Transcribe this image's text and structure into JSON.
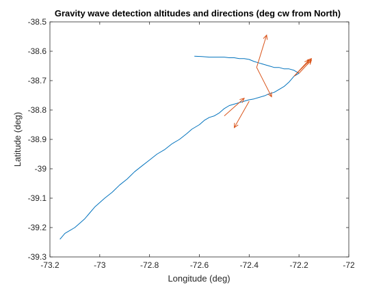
{
  "chart_data": {
    "type": "line",
    "title": "Gravity wave detection altitudes and directions (deg cw from North)",
    "xlabel": "Longitude (deg)",
    "ylabel": "Latitude (deg)",
    "xlim": [
      -73.2,
      -72.0
    ],
    "ylim": [
      -39.3,
      -38.5
    ],
    "x_ticks": [
      -73.2,
      -73.0,
      -72.8,
      -72.6,
      -72.4,
      -72.2,
      -72.0
    ],
    "x_tick_labels": [
      "-73.2",
      "-73",
      "-72.8",
      "-72.6",
      "-72.4",
      "-72.2",
      "-72"
    ],
    "y_ticks": [
      -39.3,
      -39.2,
      -39.1,
      -39.0,
      -38.9,
      -38.8,
      -38.7,
      -38.6,
      -38.5
    ],
    "y_tick_labels": [
      "-39.3",
      "-39.2",
      "-39.1",
      "-39",
      "-38.9",
      "-38.8",
      "-38.7",
      "-38.6",
      "-38.5"
    ],
    "grid": false,
    "series": [
      {
        "color": "#0072BD",
        "x": [
          -73.16,
          -73.15,
          -73.14,
          -73.12,
          -73.1,
          -73.08,
          -73.06,
          -73.04,
          -73.02,
          -73.0,
          -72.98,
          -72.95,
          -72.92,
          -72.89,
          -72.86,
          -72.83,
          -72.8,
          -72.77,
          -72.74,
          -72.71,
          -72.68,
          -72.65,
          -72.63,
          -72.6,
          -72.58,
          -72.56,
          -72.54,
          -72.52,
          -72.5,
          -72.48,
          -72.46,
          -72.44,
          -72.42,
          -72.4,
          -72.38,
          -72.36,
          -72.34,
          -72.32,
          -72.3,
          -72.28,
          -72.26,
          -72.24,
          -72.23,
          -72.22,
          -72.21,
          -72.2,
          -72.21,
          -72.22,
          -72.24,
          -72.26,
          -72.28,
          -72.3,
          -72.32,
          -72.34,
          -72.36,
          -72.38,
          -72.4,
          -72.42,
          -72.44,
          -72.46,
          -72.48,
          -72.5,
          -72.53,
          -72.56,
          -72.59,
          -72.62
        ],
        "y": [
          -39.24,
          -39.23,
          -39.22,
          -39.21,
          -39.2,
          -39.185,
          -39.17,
          -39.15,
          -39.13,
          -39.115,
          -39.1,
          -39.08,
          -39.055,
          -39.035,
          -39.01,
          -38.99,
          -38.97,
          -38.95,
          -38.935,
          -38.915,
          -38.9,
          -38.88,
          -38.865,
          -38.85,
          -38.835,
          -38.825,
          -38.82,
          -38.81,
          -38.795,
          -38.785,
          -38.78,
          -38.775,
          -38.77,
          -38.765,
          -38.762,
          -38.757,
          -38.752,
          -38.745,
          -38.74,
          -38.73,
          -38.72,
          -38.705,
          -38.695,
          -38.685,
          -38.68,
          -38.675,
          -38.67,
          -38.665,
          -38.66,
          -38.66,
          -38.655,
          -38.655,
          -38.65,
          -38.645,
          -38.64,
          -38.635,
          -38.628,
          -38.625,
          -38.625,
          -38.622,
          -38.622,
          -38.62,
          -38.62,
          -38.62,
          -38.618,
          -38.617
        ]
      }
    ],
    "arrows": {
      "color": "#D95319",
      "items": [
        {
          "x": -72.37,
          "y": -38.655,
          "u": 0.04,
          "v": 0.11
        },
        {
          "x": -72.37,
          "y": -38.655,
          "u": 0.06,
          "v": -0.1
        },
        {
          "x": -72.5,
          "y": -38.82,
          "u": 0.08,
          "v": 0.06
        },
        {
          "x": -72.4,
          "y": -38.77,
          "u": -0.06,
          "v": -0.09
        },
        {
          "x": -72.22,
          "y": -38.685,
          "u": 0.06,
          "v": 0.055
        },
        {
          "x": -72.22,
          "y": -38.685,
          "u": 0.07,
          "v": 0.06
        },
        {
          "x": -72.2,
          "y": -38.675,
          "u": 0.05,
          "v": 0.045
        }
      ]
    }
  }
}
